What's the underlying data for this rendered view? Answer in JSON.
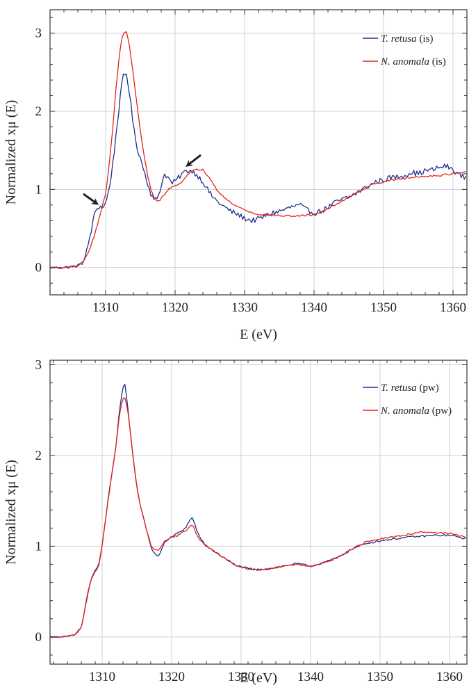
{
  "chart_data": [
    {
      "type": "line",
      "xlabel": "E (eV)",
      "ylabel": "Normalized xμ (E)",
      "xlim": [
        1302,
        1362
      ],
      "ylim": [
        -0.35,
        3.3
      ],
      "xticks": [
        1310,
        1320,
        1330,
        1340,
        1350,
        1360
      ],
      "yticks": [
        0,
        1,
        2,
        3
      ],
      "grid": true,
      "legend_position": "top-right",
      "annotations": [
        {
          "type": "arrow",
          "target": [
            1309.0,
            0.8
          ]
        },
        {
          "type": "arrow",
          "target": [
            1321.5,
            1.28
          ]
        }
      ],
      "series": [
        {
          "name_italic": "T. retusa",
          "name_suffix": " (is)",
          "color": "#1f2f8f",
          "noise": 0.035,
          "x": [
            1302,
            1304,
            1306,
            1307,
            1307.5,
            1308,
            1308.5,
            1309,
            1309.5,
            1310,
            1310.5,
            1311,
            1311.5,
            1312,
            1312.5,
            1313,
            1313.5,
            1314,
            1314.5,
            1315,
            1315.5,
            1316,
            1316.5,
            1317,
            1317.5,
            1318,
            1318.5,
            1319,
            1319.5,
            1320,
            1321,
            1322,
            1323,
            1324,
            1325,
            1326,
            1327,
            1328,
            1329,
            1330,
            1331,
            1332,
            1333,
            1334,
            1335,
            1336,
            1337,
            1338,
            1339,
            1340,
            1341,
            1342,
            1343,
            1344,
            1345,
            1346,
            1347,
            1348,
            1349,
            1350,
            1351,
            1352,
            1353,
            1354,
            1355,
            1356,
            1357,
            1358,
            1359,
            1360,
            1361,
            1362
          ],
          "y": [
            0.0,
            0.0,
            0.02,
            0.1,
            0.3,
            0.5,
            0.72,
            0.78,
            0.77,
            0.82,
            1.0,
            1.3,
            1.7,
            2.1,
            2.45,
            2.48,
            2.2,
            1.8,
            1.55,
            1.4,
            1.25,
            1.1,
            0.95,
            0.85,
            0.9,
            1.05,
            1.2,
            1.15,
            1.08,
            1.1,
            1.2,
            1.25,
            1.2,
            1.1,
            0.95,
            0.85,
            0.78,
            0.72,
            0.68,
            0.63,
            0.6,
            0.62,
            0.66,
            0.7,
            0.72,
            0.75,
            0.78,
            0.8,
            0.73,
            0.7,
            0.72,
            0.77,
            0.83,
            0.87,
            0.9,
            0.95,
            1.0,
            1.05,
            1.1,
            1.12,
            1.15,
            1.16,
            1.18,
            1.22,
            1.2,
            1.24,
            1.25,
            1.28,
            1.3,
            1.25,
            1.18,
            1.15
          ]
        },
        {
          "name_italic": "N. anomala",
          "name_suffix": " (is)",
          "color": "#e8221a",
          "noise": 0.012,
          "x": [
            1302,
            1304,
            1306,
            1307,
            1308,
            1309,
            1310,
            1310.5,
            1311,
            1311.5,
            1312,
            1312.5,
            1313,
            1313.5,
            1314,
            1314.5,
            1315,
            1315.5,
            1316,
            1316.5,
            1317,
            1317.5,
            1318,
            1319,
            1320,
            1321,
            1322,
            1323,
            1324,
            1325,
            1326,
            1327,
            1328,
            1329,
            1330,
            1331,
            1332,
            1334,
            1336,
            1338,
            1340,
            1342,
            1344,
            1346,
            1348,
            1350,
            1352,
            1354,
            1356,
            1358,
            1360,
            1362
          ],
          "y": [
            0.0,
            0.0,
            0.02,
            0.1,
            0.3,
            0.6,
            0.95,
            1.3,
            1.75,
            2.3,
            2.75,
            3.0,
            3.02,
            2.8,
            2.45,
            2.1,
            1.75,
            1.45,
            1.2,
            1.0,
            0.88,
            0.85,
            0.88,
            1.0,
            1.05,
            1.1,
            1.2,
            1.26,
            1.25,
            1.15,
            1.0,
            0.9,
            0.83,
            0.78,
            0.74,
            0.7,
            0.68,
            0.67,
            0.66,
            0.66,
            0.68,
            0.75,
            0.85,
            0.95,
            1.05,
            1.1,
            1.13,
            1.15,
            1.17,
            1.18,
            1.2,
            1.22
          ]
        }
      ]
    },
    {
      "type": "line",
      "xlabel": "E (eV)",
      "ylabel": "Normalized xμ (E)",
      "xlim": [
        1302.5,
        1362.5
      ],
      "ylim": [
        -0.3,
        3.05
      ],
      "xticks": [
        1310,
        1320,
        1330,
        1340,
        1350,
        1360
      ],
      "yticks": [
        0,
        1,
        2,
        3
      ],
      "grid": true,
      "legend_position": "top-right",
      "series": [
        {
          "name_italic": "T. retusa",
          "name_suffix": " (pw)",
          "color": "#1f2f8f",
          "noise": 0.01,
          "x": [
            1302.5,
            1304,
            1306,
            1307,
            1307.5,
            1308,
            1308.5,
            1309,
            1309.5,
            1310,
            1310.5,
            1311,
            1311.5,
            1312,
            1312.5,
            1313,
            1313.3,
            1313.6,
            1314,
            1314.5,
            1315,
            1315.5,
            1316,
            1316.5,
            1317,
            1317.5,
            1318,
            1318.5,
            1319,
            1320,
            1321,
            1322,
            1322.5,
            1323,
            1323.5,
            1324,
            1325,
            1326,
            1327,
            1328,
            1329,
            1330,
            1332,
            1334,
            1336,
            1338,
            1340,
            1342,
            1344,
            1346,
            1348,
            1350,
            1352,
            1354,
            1356,
            1358,
            1360,
            1362.5
          ],
          "y": [
            0.0,
            0.0,
            0.02,
            0.1,
            0.3,
            0.5,
            0.65,
            0.72,
            0.78,
            1.0,
            1.3,
            1.6,
            1.85,
            2.1,
            2.5,
            2.75,
            2.78,
            2.6,
            2.3,
            1.95,
            1.65,
            1.45,
            1.3,
            1.15,
            1.0,
            0.92,
            0.88,
            0.95,
            1.05,
            1.1,
            1.15,
            1.2,
            1.27,
            1.32,
            1.2,
            1.1,
            1.0,
            0.95,
            0.9,
            0.85,
            0.8,
            0.77,
            0.74,
            0.75,
            0.78,
            0.81,
            0.78,
            0.82,
            0.88,
            0.97,
            1.03,
            1.06,
            1.08,
            1.1,
            1.11,
            1.12,
            1.12,
            1.08
          ]
        },
        {
          "name_italic": "N. anomala",
          "name_suffix": " (pw)",
          "color": "#e8221a",
          "noise": 0.01,
          "x": [
            1302.5,
            1304,
            1306,
            1307,
            1307.5,
            1308,
            1308.5,
            1309,
            1309.5,
            1310,
            1310.5,
            1311,
            1311.5,
            1312,
            1312.5,
            1313,
            1313.3,
            1313.6,
            1314,
            1314.5,
            1315,
            1315.5,
            1316,
            1316.5,
            1317,
            1317.5,
            1318,
            1318.5,
            1319,
            1320,
            1321,
            1322,
            1322.5,
            1323,
            1323.5,
            1324,
            1325,
            1326,
            1327,
            1328,
            1329,
            1330,
            1332,
            1334,
            1336,
            1338,
            1340,
            1342,
            1344,
            1346,
            1348,
            1350,
            1352,
            1354,
            1356,
            1358,
            1360,
            1362.5
          ],
          "y": [
            0.0,
            0.0,
            0.02,
            0.1,
            0.3,
            0.52,
            0.66,
            0.73,
            0.8,
            1.02,
            1.3,
            1.58,
            1.85,
            2.1,
            2.45,
            2.62,
            2.63,
            2.55,
            2.3,
            1.95,
            1.65,
            1.45,
            1.3,
            1.15,
            1.02,
            0.96,
            0.95,
            1.0,
            1.05,
            1.1,
            1.12,
            1.17,
            1.2,
            1.24,
            1.15,
            1.08,
            1.0,
            0.95,
            0.9,
            0.85,
            0.8,
            0.77,
            0.74,
            0.75,
            0.78,
            0.8,
            0.78,
            0.82,
            0.88,
            0.97,
            1.05,
            1.08,
            1.1,
            1.13,
            1.16,
            1.15,
            1.14,
            1.1
          ]
        }
      ]
    }
  ]
}
